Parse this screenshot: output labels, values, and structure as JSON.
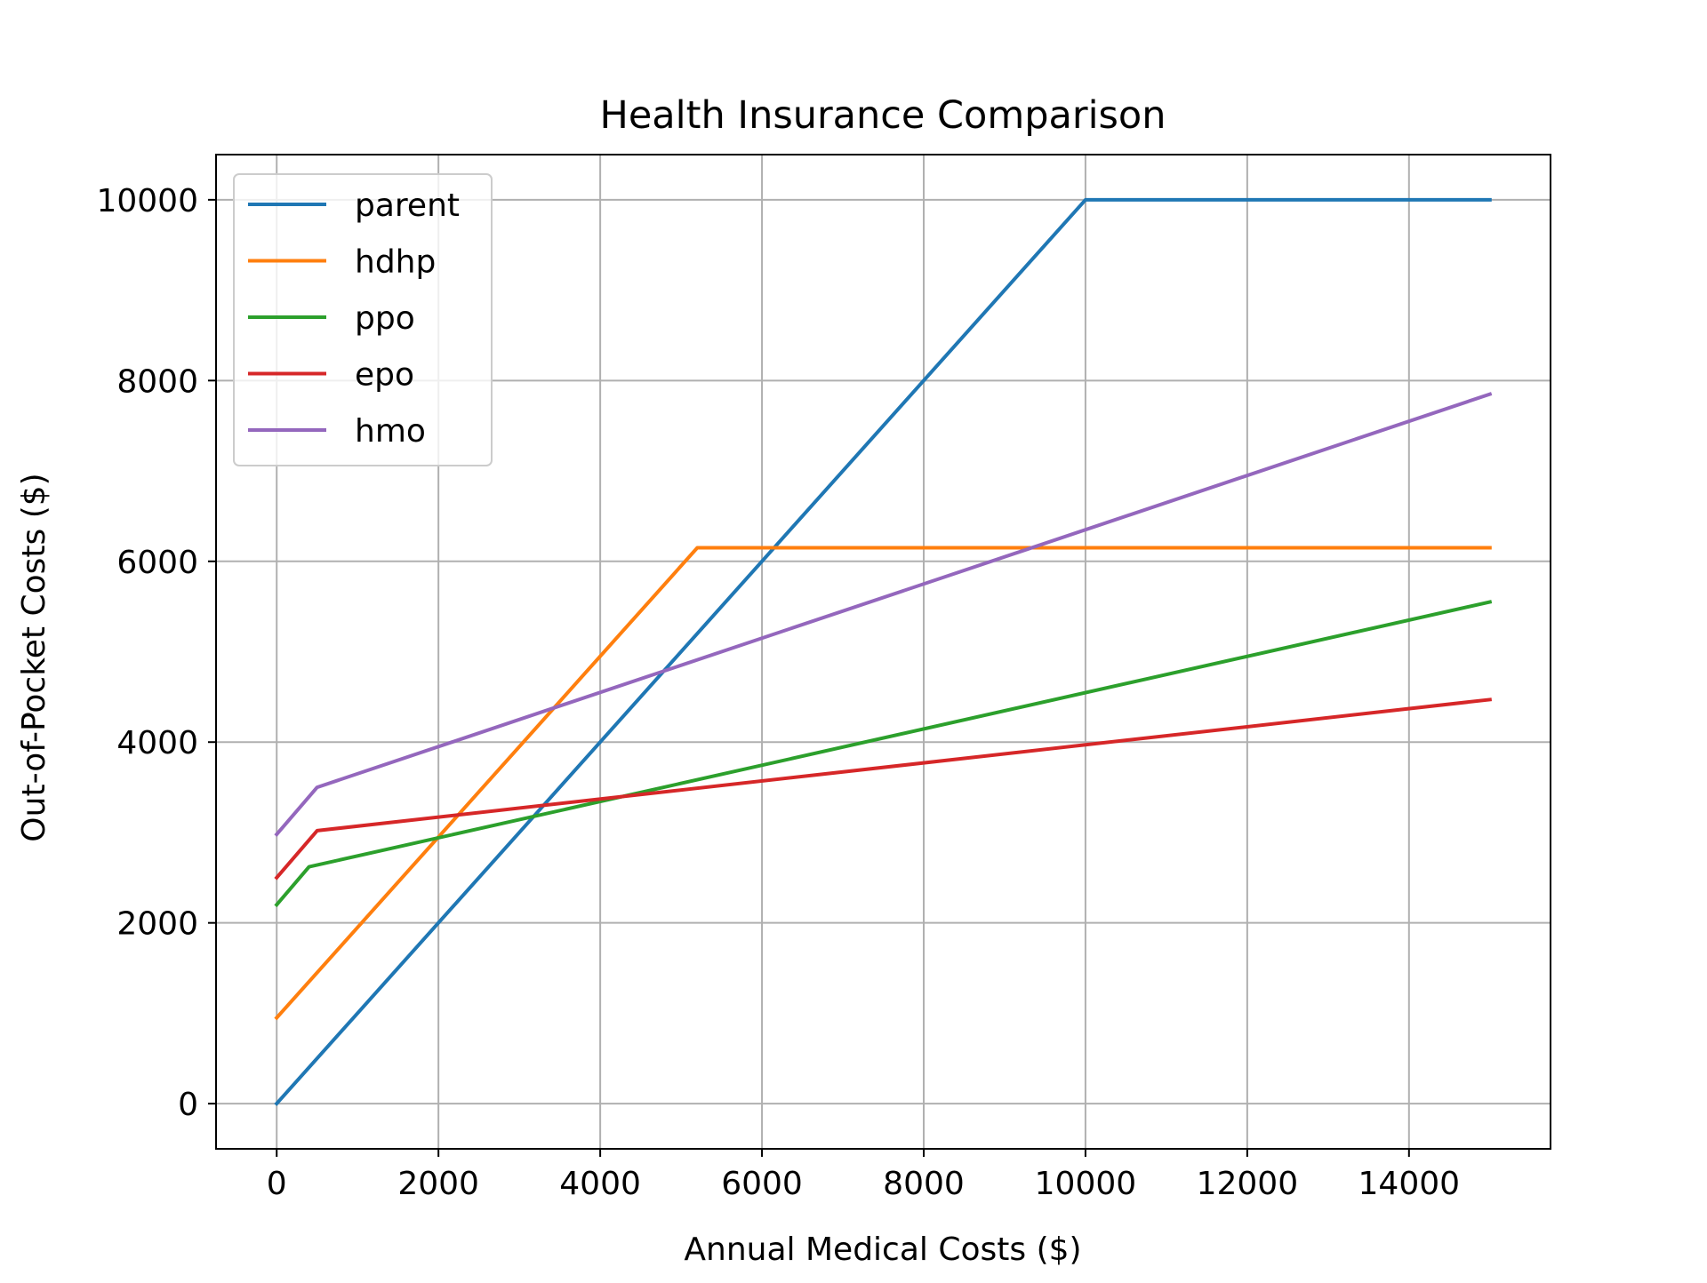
{
  "chart_data": {
    "type": "line",
    "title": "Health Insurance Comparison",
    "xlabel": "Annual Medical Costs ($)",
    "ylabel": "Out-of-Pocket Costs ($)",
    "xlim": [
      -750,
      15750
    ],
    "ylim": [
      -500,
      10500
    ],
    "xticks": [
      0,
      2000,
      4000,
      6000,
      8000,
      10000,
      12000,
      14000
    ],
    "xtick_labels": [
      "0",
      "2000",
      "4000",
      "6000",
      "8000",
      "10000",
      "12000",
      "14000"
    ],
    "yticks": [
      0,
      2000,
      4000,
      6000,
      8000,
      10000
    ],
    "ytick_labels": [
      "0",
      "2000",
      "4000",
      "6000",
      "8000",
      "10000"
    ],
    "grid": true,
    "legend_position": "upper-left",
    "series": [
      {
        "name": "parent",
        "color": "#1f77b4",
        "x": [
          0,
          10000,
          15000
        ],
        "y": [
          0,
          10000,
          10000
        ]
      },
      {
        "name": "hdhp",
        "color": "#ff7f0e",
        "x": [
          0,
          5200,
          15000
        ],
        "y": [
          950,
          6150,
          6150
        ]
      },
      {
        "name": "ppo",
        "color": "#2ca02c",
        "x": [
          0,
          400,
          15000
        ],
        "y": [
          2200,
          2620,
          5550
        ]
      },
      {
        "name": "epo",
        "color": "#d62728",
        "x": [
          0,
          500,
          15000
        ],
        "y": [
          2500,
          3020,
          4470
        ]
      },
      {
        "name": "hmo",
        "color": "#9467bd",
        "x": [
          0,
          500,
          15000
        ],
        "y": [
          2980,
          3500,
          7850
        ]
      }
    ]
  }
}
